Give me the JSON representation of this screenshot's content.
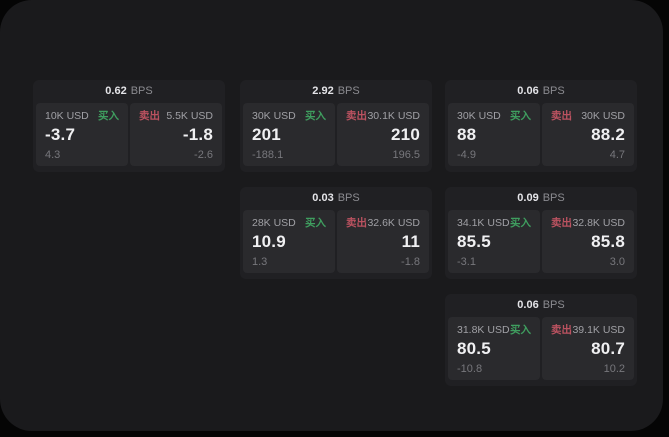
{
  "labels": {
    "bps_unit": "BPS",
    "buy": "买入",
    "sell": "卖出"
  },
  "colors": {
    "buy_accent": "#3f9e5f",
    "sell_accent": "#bb5260",
    "page_bg": "#1a1a1c",
    "card_bg": "#202023",
    "panel_bg": "#2a2a2d"
  },
  "cards": [
    {
      "bps": "0.62",
      "buy": {
        "size": "10K USD",
        "value": "-3.7",
        "delta": "4.3"
      },
      "sell": {
        "size": "5.5K USD",
        "value": "-1.8",
        "delta": "-2.6"
      }
    },
    {
      "bps": "2.92",
      "buy": {
        "size": "30K USD",
        "value": "201",
        "delta": "-188.1"
      },
      "sell": {
        "size": "30.1K USD",
        "value": "210",
        "delta": "196.5"
      }
    },
    {
      "bps": "0.06",
      "buy": {
        "size": "30K USD",
        "value": "88",
        "delta": "-4.9"
      },
      "sell": {
        "size": "30K USD",
        "value": "88.2",
        "delta": "4.7"
      }
    },
    {
      "bps": "0.03",
      "buy": {
        "size": "28K USD",
        "value": "10.9",
        "delta": "1.3"
      },
      "sell": {
        "size": "32.6K USD",
        "value": "11",
        "delta": "-1.8"
      }
    },
    {
      "bps": "0.09",
      "buy": {
        "size": "34.1K USD",
        "value": "85.5",
        "delta": "-3.1"
      },
      "sell": {
        "size": "32.8K USD",
        "value": "85.8",
        "delta": "3.0"
      }
    },
    {
      "bps": "0.06",
      "buy": {
        "size": "31.8K USD",
        "value": "80.5",
        "delta": "-10.8"
      },
      "sell": {
        "size": "39.1K USD",
        "value": "80.7",
        "delta": "10.2"
      }
    }
  ]
}
